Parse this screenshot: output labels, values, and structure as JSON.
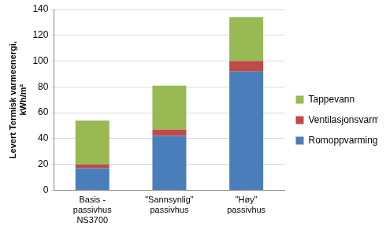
{
  "chart_data": {
    "type": "bar",
    "y_label": [
      "Levert Termisk varmeenergi,",
      "kWh/m²"
    ],
    "categories": [
      [
        "Basis -",
        "passivhus",
        "NS3700"
      ],
      [
        "\"Sannsynlig\"",
        "passivhus"
      ],
      [
        "\"Høy\"",
        "passivhus"
      ]
    ],
    "series": [
      {
        "name": "Romoppvarming",
        "color": "#4a7ebb",
        "values": [
          17,
          42,
          92
        ]
      },
      {
        "name": "Ventilasjonsvarme",
        "color": "#be4b48",
        "values": [
          3,
          5,
          8
        ]
      },
      {
        "name": "Tappevann",
        "color": "#98b954",
        "values": [
          34,
          34,
          34
        ]
      }
    ],
    "ylim": [
      0,
      140
    ],
    "yticks": [
      0,
      20,
      40,
      60,
      80,
      100,
      120,
      140
    ],
    "stacked": true,
    "grid": true,
    "legend": "right"
  }
}
